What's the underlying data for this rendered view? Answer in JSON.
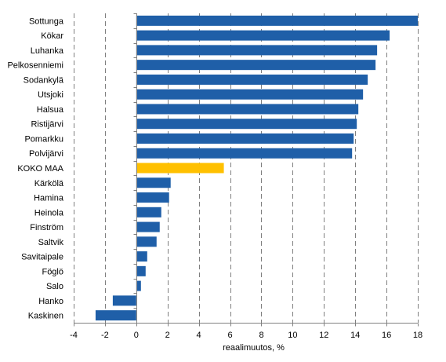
{
  "chart_data": {
    "type": "bar",
    "orientation": "horizontal",
    "categories": [
      "Sottunga",
      "Kökar",
      "Luhanka",
      "Pelkosenniemi",
      "Sodankylä",
      "Utsjoki",
      "Halsua",
      "Ristijärvi",
      "Pomarkku",
      "Polvijärvi",
      "KOKO MAA",
      "Kärkölä",
      "Hamina",
      "Heinola",
      "Finström",
      "Saltvik",
      "Savitaipale",
      "Föglö",
      "Salo",
      "Hanko",
      "Kaskinen"
    ],
    "values": [
      18.0,
      16.2,
      15.4,
      15.3,
      14.8,
      14.5,
      14.2,
      14.1,
      13.9,
      13.8,
      5.6,
      2.2,
      2.1,
      1.6,
      1.5,
      1.3,
      0.7,
      0.6,
      0.3,
      -1.5,
      -2.6
    ],
    "highlight_index": 10,
    "colors": {
      "bar": "#1f5fa8",
      "highlight": "#ffc000"
    },
    "xlabel": "reaalimuutos, %",
    "ylabel": "",
    "xlim": [
      -4,
      18
    ],
    "xticks": [
      -4,
      -2,
      0,
      2,
      4,
      6,
      8,
      10,
      12,
      14,
      16,
      18
    ],
    "grid": "vertical dashed at even major ticks",
    "legend": "none"
  }
}
